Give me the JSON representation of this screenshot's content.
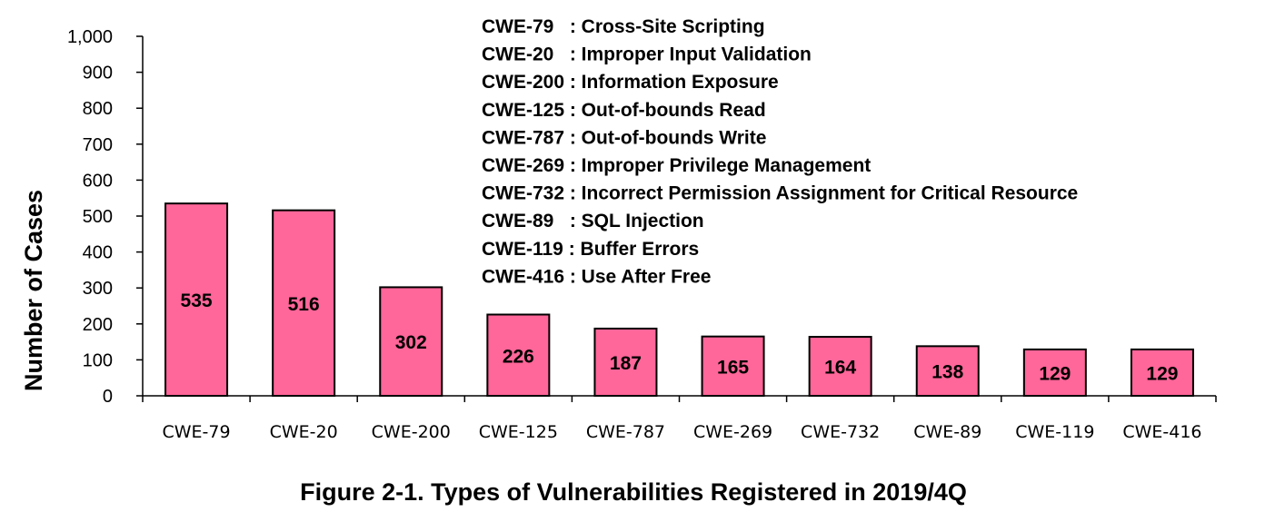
{
  "chart_data": {
    "type": "bar",
    "categories": [
      "CWE-79",
      "CWE-20",
      "CWE-200",
      "CWE-125",
      "CWE-787",
      "CWE-269",
      "CWE-732",
      "CWE-89",
      "CWE-119",
      "CWE-416"
    ],
    "values": [
      535,
      516,
      302,
      226,
      187,
      165,
      164,
      138,
      129,
      129
    ],
    "data_labels": [
      "535",
      "516",
      "302",
      "226",
      "187",
      "165",
      "164",
      "138",
      "129",
      "129"
    ],
    "ylabel": "Number of Cases",
    "xlabel": "",
    "ylim": [
      0,
      1000
    ],
    "yticks": [
      0,
      100,
      200,
      300,
      400,
      500,
      600,
      700,
      800,
      900,
      1000
    ],
    "ytick_labels": [
      "0",
      "100",
      "200",
      "300",
      "400",
      "500",
      "600",
      "700",
      "800",
      "900",
      "1,000"
    ],
    "bar_color": "#ff6699",
    "grid": false,
    "legend_placement": "top-center",
    "annotations": [
      {
        "code": "CWE-79",
        "sep": "   : ",
        "desc": "Cross-Site Scripting"
      },
      {
        "code": "CWE-20",
        "sep": "   : ",
        "desc": "Improper Input Validation"
      },
      {
        "code": "CWE-200",
        "sep": " : ",
        "desc": "Information Exposure"
      },
      {
        "code": "CWE-125",
        "sep": " : ",
        "desc": "Out-of-bounds Read"
      },
      {
        "code": "CWE-787",
        "sep": " : ",
        "desc": "Out-of-bounds Write"
      },
      {
        "code": "CWE-269",
        "sep": " : ",
        "desc": "Improper Privilege Management"
      },
      {
        "code": "CWE-732",
        "sep": " : ",
        "desc": "Incorrect Permission Assignment for Critical Resource"
      },
      {
        "code": "CWE-89",
        "sep": "   : ",
        "desc": "SQL Injection"
      },
      {
        "code": "CWE-119",
        "sep": " : ",
        "desc": "Buffer Errors"
      },
      {
        "code": "CWE-416",
        "sep": " : ",
        "desc": "Use After Free"
      }
    ]
  },
  "caption": "Figure 2-1. Types of Vulnerabilities Registered in 2019/4Q"
}
